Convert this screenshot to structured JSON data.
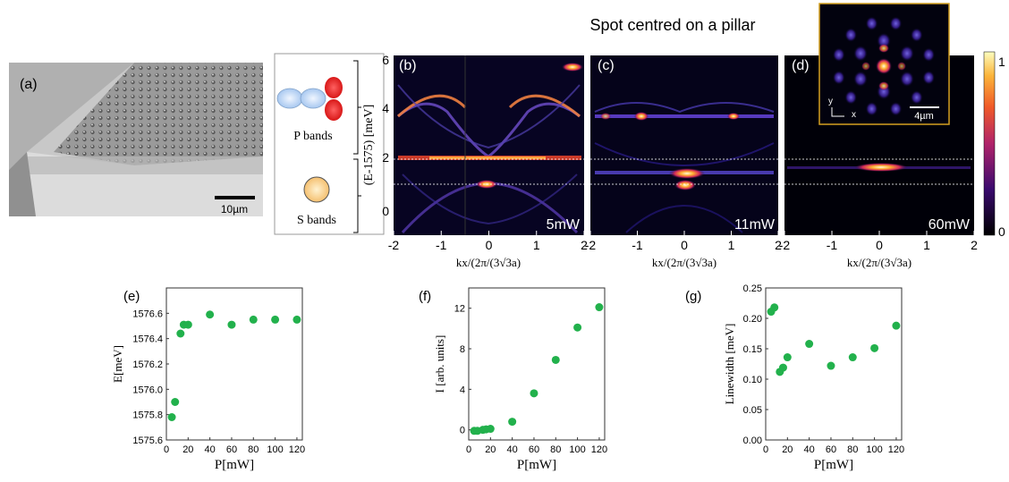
{
  "figure": {
    "title": "Spot centred on a pillar",
    "panel_a": {
      "label": "(a)",
      "scalebar": "10µm"
    },
    "schematic": {
      "p_label": "P bands",
      "s_label": "S bands"
    },
    "axis_y_top": "(E-1575) [meV]",
    "axis_x_top": "kx/(2π/(3√3a)",
    "panels": [
      {
        "label": "(b)",
        "power": "5mW"
      },
      {
        "label": "(c)",
        "power": "11mW"
      },
      {
        "label": "(d)",
        "power": "60mW"
      }
    ],
    "inset": {
      "scalebar": "4µm",
      "axis_y": "y",
      "axis_x": "x"
    },
    "colorbar": {
      "max_label": "1",
      "min_label": "0"
    },
    "top_x_ticks": [
      "-2",
      "-1",
      "0",
      "1",
      "2"
    ],
    "top_y_ticks": [
      "6",
      "4",
      "2",
      "0"
    ]
  },
  "chart_data": [
    {
      "type": "scatter",
      "label": "(e)",
      "xlabel": "P[mW]",
      "ylabel": "E[meV]",
      "xlim": [
        0,
        125
      ],
      "ylim": [
        1575.6,
        1576.8
      ],
      "xticks": [
        0,
        20,
        40,
        60,
        80,
        100,
        120
      ],
      "yticks": [
        "1575.6",
        "1575.8",
        "1576.0",
        "1576.2",
        "1576.4",
        "1576.6"
      ],
      "x": [
        5,
        8,
        13,
        16,
        20,
        40,
        60,
        80,
        100,
        120
      ],
      "y": [
        1575.78,
        1575.9,
        1576.44,
        1576.51,
        1576.51,
        1576.59,
        1576.51,
        1576.55,
        1576.55,
        1576.55
      ],
      "color": "#22b14c"
    },
    {
      "type": "scatter",
      "label": "(f)",
      "xlabel": "P[mW]",
      "ylabel": "I [arb. units]",
      "xlim": [
        0,
        125
      ],
      "ylim": [
        -1,
        14
      ],
      "xticks": [
        0,
        20,
        40,
        60,
        80,
        100,
        120
      ],
      "yticks": [
        "0",
        "4",
        "8",
        "12"
      ],
      "x": [
        5,
        8,
        13,
        16,
        20,
        40,
        60,
        80,
        100,
        120
      ],
      "y": [
        -0.1,
        -0.1,
        0.0,
        0.05,
        0.1,
        0.8,
        3.6,
        6.9,
        10.1,
        12.1
      ],
      "color": "#22b14c"
    },
    {
      "type": "scatter",
      "label": "(g)",
      "xlabel": "P[mW]",
      "ylabel": "Linewidth [meV]",
      "xlim": [
        0,
        125
      ],
      "ylim": [
        0,
        0.25
      ],
      "xticks": [
        0,
        20,
        40,
        60,
        80,
        100,
        120
      ],
      "yticks": [
        "0.00",
        "0.05",
        "0.10",
        "0.15",
        "0.20",
        "0.25"
      ],
      "x": [
        5,
        8,
        13,
        16,
        20,
        40,
        60,
        80,
        100,
        120
      ],
      "y": [
        0.211,
        0.218,
        0.112,
        0.119,
        0.136,
        0.158,
        0.122,
        0.136,
        0.151,
        0.188
      ],
      "color": "#22b14c"
    }
  ]
}
